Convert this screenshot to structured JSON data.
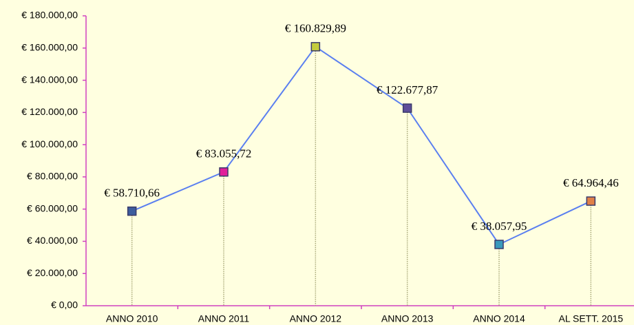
{
  "chart_data": {
    "type": "line",
    "categories": [
      "ANNO 2010",
      "ANNO 2011",
      "ANNO 2012",
      "ANNO 2013",
      "ANNO 2014",
      "AL SETT. 2015"
    ],
    "series": [
      {
        "color": "#5a7ff0",
        "values": [
          58710.66,
          83055.72,
          160829.89,
          122677.87,
          38057.95,
          64964.46
        ],
        "value_labels": [
          "€ 58.710,66",
          "€ 83.055,72",
          "€ 160.829,89",
          "€ 122.677,87",
          "€ 38.057,95",
          "€ 64.964,46"
        ],
        "point_colors": [
          "#3d5d9e",
          "#e0209a",
          "#c4cc3c",
          "#5e4e9a",
          "#3a9abc",
          "#e08048"
        ]
      }
    ],
    "ylim": [
      0,
      180000
    ],
    "yticks": [
      {
        "value": 0,
        "label": "€ 0,00"
      },
      {
        "value": 20000,
        "label": "€ 20.000,00"
      },
      {
        "value": 40000,
        "label": "€ 40.000,00"
      },
      {
        "value": 60000,
        "label": "€ 60.000,00"
      },
      {
        "value": 80000,
        "label": "€ 80.000,00"
      },
      {
        "value": 100000,
        "label": "€ 100.000,00"
      },
      {
        "value": 120000,
        "label": "€ 120.000,00"
      },
      {
        "value": 140000,
        "label": "€ 140.000,00"
      },
      {
        "value": 160000,
        "label": "€ 160.000,00"
      },
      {
        "value": 180000,
        "label": "€ 180.000,00"
      }
    ],
    "axis_color": "#d040c0",
    "drop_lines": true
  }
}
